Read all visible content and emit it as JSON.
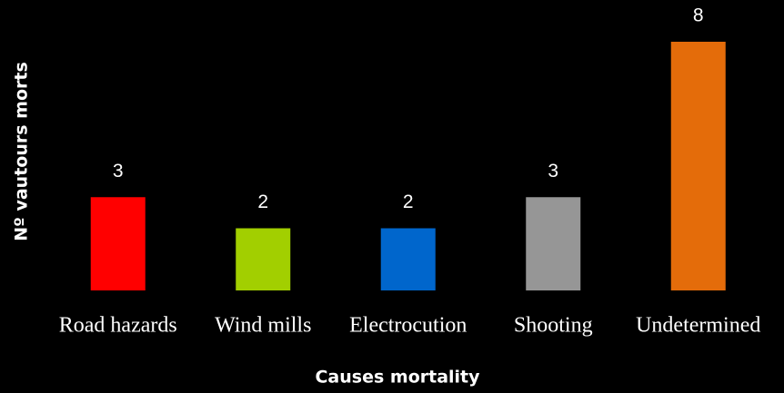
{
  "chart_data": {
    "type": "bar",
    "categories": [
      "Road hazards",
      "Wind mills",
      "Electrocution",
      "Shooting",
      "Undetermined"
    ],
    "values": [
      3,
      2,
      2,
      3,
      8
    ],
    "colors": [
      "#ff0000",
      "#a2cf00",
      "#0066cc",
      "#969696",
      "#e46c0a"
    ],
    "xlabel": "Causes mortality",
    "ylabel": "Nº vautours morts",
    "ylim": [
      0,
      8
    ]
  }
}
